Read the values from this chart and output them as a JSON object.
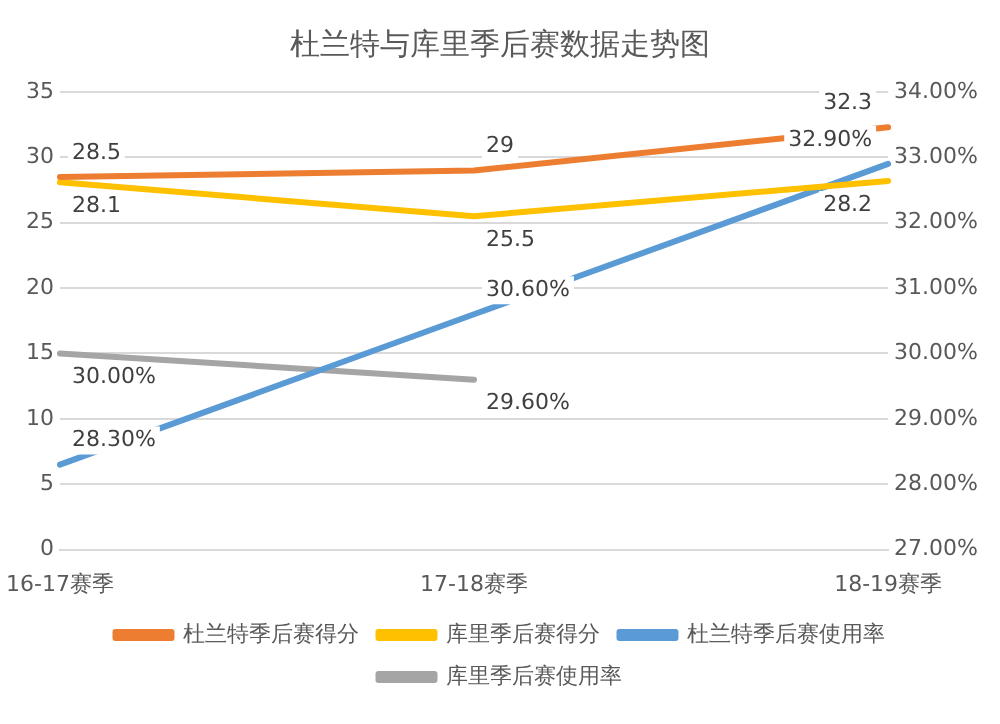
{
  "chart_data": {
    "type": "line",
    "title": "杜兰特与库里季后赛数据走势图",
    "categories": [
      "16-17赛季",
      "17-18赛季",
      "18-19赛季"
    ],
    "series": [
      {
        "name": "杜兰特季后赛得分",
        "color": "#ed7d31",
        "values": [
          28.5,
          29,
          32.3
        ],
        "value_labels": [
          "28.5",
          "29",
          "32.3"
        ]
      },
      {
        "name": "库里季后赛得分",
        "color": "#ffc000",
        "values": [
          28.1,
          25.5,
          28.2
        ],
        "value_labels": [
          "28.1",
          "25.5",
          "28.2"
        ]
      },
      {
        "name": "杜兰特季后赛使用率",
        "color": "#5b9bd5",
        "axis": "y2",
        "values": [
          28.3,
          30.6,
          32.9
        ],
        "value_labels": [
          "28.30%",
          "30.60%",
          "32.90%"
        ]
      },
      {
        "name": "库里季后赛使用率",
        "color": "#a5a5a5",
        "axis": "y2",
        "values": [
          30,
          29.6,
          null
        ],
        "value_labels": [
          "30.00%",
          "29.60%",
          null
        ]
      }
    ],
    "ylim": [
      0,
      35
    ],
    "yticks": [
      0,
      5,
      10,
      15,
      20,
      25,
      30,
      35
    ],
    "y2lim": [
      27,
      34
    ],
    "y2ticks": [
      {
        "value": 27,
        "label": "27.00%"
      },
      {
        "value": 28,
        "label": "28.00%"
      },
      {
        "value": 29,
        "label": "29.00%"
      },
      {
        "value": 30,
        "label": "30.00%"
      },
      {
        "value": 31,
        "label": "31.00%"
      },
      {
        "value": 32,
        "label": "32.00%"
      },
      {
        "value": 33,
        "label": "33.00%"
      },
      {
        "value": 34,
        "label": "34.00%"
      }
    ],
    "grid": "y",
    "legend": "bottom",
    "marker": "none",
    "line_style": "solid"
  }
}
